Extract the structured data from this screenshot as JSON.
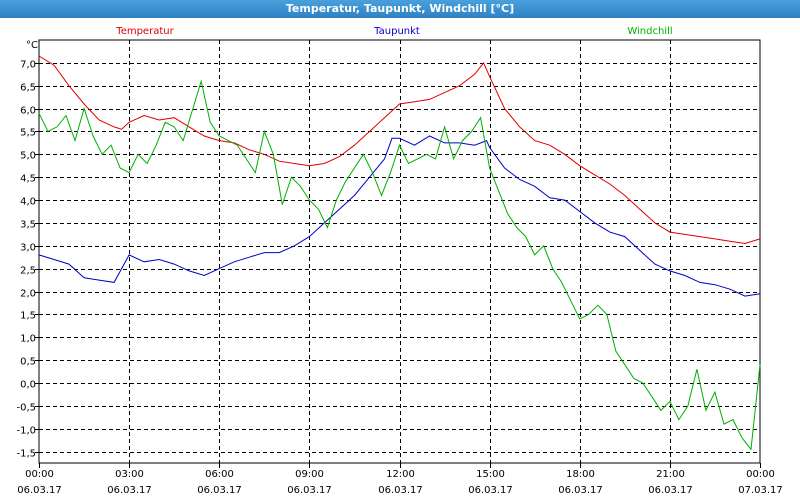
{
  "window": {
    "title": "Temperatur, Taupunkt, Windchill [°C]"
  },
  "chart_data": {
    "type": "line",
    "title": "Temperatur, Taupunkt, Windchill [°C]",
    "unit_label": "°C",
    "xlim": [
      0,
      24
    ],
    "ylim": [
      -1.75,
      7.5
    ],
    "grid": true,
    "y_ticks": [
      "7,0",
      "6,5",
      "6,0",
      "5,5",
      "5,0",
      "4,5",
      "4,0",
      "3,5",
      "3,0",
      "2,5",
      "2,0",
      "1,5",
      "1,0",
      "0,5",
      "0,0",
      "-0,5",
      "-1,0",
      "-1,5"
    ],
    "y_tick_values": [
      7.0,
      6.5,
      6.0,
      5.5,
      5.0,
      4.5,
      4.0,
      3.5,
      3.0,
      2.5,
      2.0,
      1.5,
      1.0,
      0.5,
      0.0,
      -0.5,
      -1.0,
      -1.5
    ],
    "x_ticks": [
      {
        "h": 0,
        "time": "00:00",
        "date": "06.03.17"
      },
      {
        "h": 3,
        "time": "03:00",
        "date": "06.03.17"
      },
      {
        "h": 6,
        "time": "06:00",
        "date": "06.03.17"
      },
      {
        "h": 9,
        "time": "09:00",
        "date": "06.03.17"
      },
      {
        "h": 12,
        "time": "12:00",
        "date": "06.03.17"
      },
      {
        "h": 15,
        "time": "15:00",
        "date": "06.03.17"
      },
      {
        "h": 18,
        "time": "18:00",
        "date": "06.03.17"
      },
      {
        "h": 21,
        "time": "21:00",
        "date": "06.03.17"
      },
      {
        "h": 24,
        "time": "00:00",
        "date": "07.03.17"
      }
    ],
    "series": [
      {
        "name": "Temperatur",
        "color": "#e00000",
        "legend_pos": "left",
        "points": [
          [
            0,
            7.15
          ],
          [
            0.5,
            6.95
          ],
          [
            1,
            6.5
          ],
          [
            1.5,
            6.1
          ],
          [
            2,
            5.75
          ],
          [
            2.5,
            5.6
          ],
          [
            2.75,
            5.55
          ],
          [
            3,
            5.7
          ],
          [
            3.5,
            5.85
          ],
          [
            4,
            5.75
          ],
          [
            4.5,
            5.8
          ],
          [
            5,
            5.6
          ],
          [
            5.5,
            5.4
          ],
          [
            6,
            5.3
          ],
          [
            6.5,
            5.25
          ],
          [
            7,
            5.1
          ],
          [
            7.5,
            5.0
          ],
          [
            8,
            4.85
          ],
          [
            8.5,
            4.8
          ],
          [
            9,
            4.75
          ],
          [
            9.5,
            4.8
          ],
          [
            10,
            4.95
          ],
          [
            10.5,
            5.2
          ],
          [
            11,
            5.5
          ],
          [
            11.5,
            5.8
          ],
          [
            12,
            6.1
          ],
          [
            12.5,
            6.15
          ],
          [
            13,
            6.2
          ],
          [
            13.5,
            6.35
          ],
          [
            14,
            6.5
          ],
          [
            14.5,
            6.75
          ],
          [
            14.8,
            7.0
          ],
          [
            15,
            6.7
          ],
          [
            15.5,
            6.0
          ],
          [
            16,
            5.6
          ],
          [
            16.5,
            5.3
          ],
          [
            17,
            5.2
          ],
          [
            17.5,
            5.0
          ],
          [
            18,
            4.75
          ],
          [
            18.5,
            4.55
          ],
          [
            19,
            4.35
          ],
          [
            19.5,
            4.1
          ],
          [
            20,
            3.8
          ],
          [
            20.5,
            3.5
          ],
          [
            21,
            3.3
          ],
          [
            21.5,
            3.25
          ],
          [
            22,
            3.2
          ],
          [
            22.5,
            3.15
          ],
          [
            23,
            3.1
          ],
          [
            23.5,
            3.05
          ],
          [
            24,
            3.15
          ]
        ]
      },
      {
        "name": "Taupunkt",
        "color": "#0000c8",
        "legend_pos": "center",
        "points": [
          [
            0,
            2.8
          ],
          [
            0.5,
            2.7
          ],
          [
            1,
            2.6
          ],
          [
            1.5,
            2.3
          ],
          [
            2,
            2.25
          ],
          [
            2.5,
            2.2
          ],
          [
            3,
            2.8
          ],
          [
            3.5,
            2.65
          ],
          [
            4,
            2.7
          ],
          [
            4.5,
            2.6
          ],
          [
            5,
            2.45
          ],
          [
            5.5,
            2.35
          ],
          [
            6,
            2.5
          ],
          [
            6.5,
            2.65
          ],
          [
            7,
            2.75
          ],
          [
            7.5,
            2.85
          ],
          [
            8,
            2.85
          ],
          [
            8.5,
            3.0
          ],
          [
            9,
            3.2
          ],
          [
            9.5,
            3.5
          ],
          [
            10,
            3.8
          ],
          [
            10.5,
            4.1
          ],
          [
            11,
            4.5
          ],
          [
            11.5,
            4.9
          ],
          [
            11.75,
            5.35
          ],
          [
            12,
            5.35
          ],
          [
            12.5,
            5.2
          ],
          [
            13,
            5.4
          ],
          [
            13.5,
            5.25
          ],
          [
            14,
            5.25
          ],
          [
            14.5,
            5.2
          ],
          [
            14.9,
            5.3
          ],
          [
            15,
            5.15
          ],
          [
            15.5,
            4.7
          ],
          [
            16,
            4.45
          ],
          [
            16.5,
            4.3
          ],
          [
            17,
            4.05
          ],
          [
            17.5,
            4.0
          ],
          [
            18,
            3.75
          ],
          [
            18.5,
            3.5
          ],
          [
            19,
            3.3
          ],
          [
            19.5,
            3.2
          ],
          [
            20,
            2.9
          ],
          [
            20.5,
            2.6
          ],
          [
            21,
            2.45
          ],
          [
            21.5,
            2.35
          ],
          [
            22,
            2.2
          ],
          [
            22.5,
            2.15
          ],
          [
            23,
            2.05
          ],
          [
            23.5,
            1.9
          ],
          [
            24,
            1.95
          ]
        ]
      },
      {
        "name": "Windchill",
        "color": "#00b000",
        "legend_pos": "right",
        "points": [
          [
            0,
            5.9
          ],
          [
            0.3,
            5.5
          ],
          [
            0.6,
            5.6
          ],
          [
            0.9,
            5.85
          ],
          [
            1.2,
            5.3
          ],
          [
            1.5,
            6.0
          ],
          [
            1.8,
            5.4
          ],
          [
            2.1,
            5.0
          ],
          [
            2.4,
            5.2
          ],
          [
            2.7,
            4.7
          ],
          [
            3.0,
            4.6
          ],
          [
            3.3,
            5.0
          ],
          [
            3.6,
            4.8
          ],
          [
            3.9,
            5.2
          ],
          [
            4.2,
            5.7
          ],
          [
            4.5,
            5.6
          ],
          [
            4.8,
            5.3
          ],
          [
            5.1,
            5.95
          ],
          [
            5.4,
            6.6
          ],
          [
            5.7,
            5.7
          ],
          [
            6.0,
            5.4
          ],
          [
            6.3,
            5.3
          ],
          [
            6.6,
            5.2
          ],
          [
            6.9,
            4.9
          ],
          [
            7.2,
            4.6
          ],
          [
            7.5,
            5.5
          ],
          [
            7.8,
            5.0
          ],
          [
            8.1,
            3.9
          ],
          [
            8.4,
            4.5
          ],
          [
            8.7,
            4.3
          ],
          [
            9.0,
            4.0
          ],
          [
            9.3,
            3.8
          ],
          [
            9.6,
            3.4
          ],
          [
            9.9,
            4.0
          ],
          [
            10.2,
            4.4
          ],
          [
            10.5,
            4.7
          ],
          [
            10.8,
            5.0
          ],
          [
            11.1,
            4.6
          ],
          [
            11.4,
            4.1
          ],
          [
            11.7,
            4.6
          ],
          [
            12.0,
            5.2
          ],
          [
            12.3,
            4.8
          ],
          [
            12.6,
            4.9
          ],
          [
            12.9,
            5.0
          ],
          [
            13.2,
            4.9
          ],
          [
            13.5,
            5.6
          ],
          [
            13.8,
            4.9
          ],
          [
            14.1,
            5.3
          ],
          [
            14.4,
            5.5
          ],
          [
            14.7,
            5.8
          ],
          [
            15.0,
            4.7
          ],
          [
            15.3,
            4.2
          ],
          [
            15.6,
            3.7
          ],
          [
            15.9,
            3.4
          ],
          [
            16.2,
            3.2
          ],
          [
            16.5,
            2.8
          ],
          [
            16.8,
            3.0
          ],
          [
            17.1,
            2.5
          ],
          [
            17.4,
            2.2
          ],
          [
            17.7,
            1.8
          ],
          [
            18.0,
            1.4
          ],
          [
            18.3,
            1.5
          ],
          [
            18.6,
            1.7
          ],
          [
            18.9,
            1.5
          ],
          [
            19.2,
            0.7
          ],
          [
            19.5,
            0.4
          ],
          [
            19.8,
            0.1
          ],
          [
            20.1,
            0.0
          ],
          [
            20.4,
            -0.3
          ],
          [
            20.7,
            -0.6
          ],
          [
            21.0,
            -0.4
          ],
          [
            21.3,
            -0.8
          ],
          [
            21.6,
            -0.5
          ],
          [
            21.9,
            0.3
          ],
          [
            22.2,
            -0.6
          ],
          [
            22.5,
            -0.2
          ],
          [
            22.8,
            -0.9
          ],
          [
            23.1,
            -0.8
          ],
          [
            23.4,
            -1.2
          ],
          [
            23.7,
            -1.45
          ],
          [
            24,
            0.4
          ]
        ]
      }
    ]
  }
}
